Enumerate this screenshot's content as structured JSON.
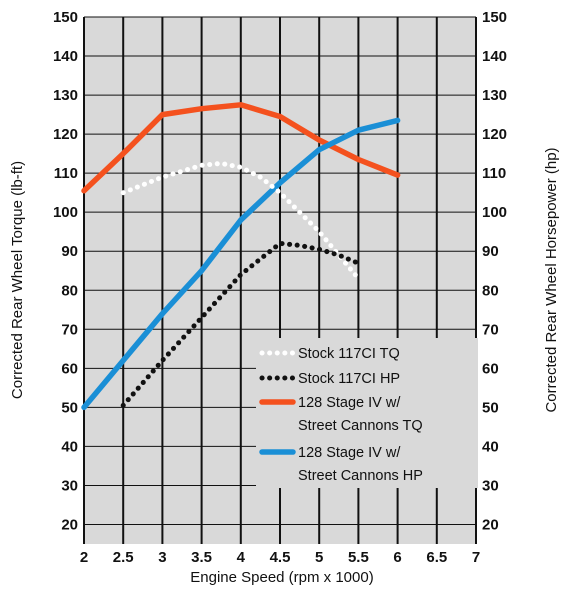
{
  "chart_data": {
    "type": "line",
    "xlabel": "Engine Speed (rpm x 1000)",
    "ylabel_left": "Corrected Rear Wheel Torque (lb-ft)",
    "ylabel_right": "Corrected Rear Wheel Horsepower (hp)",
    "xlim": [
      2,
      7
    ],
    "ylim": [
      15,
      150
    ],
    "x_ticks": [
      "2",
      "2.5",
      "3",
      "3.5",
      "4",
      "4.5",
      "5",
      "5.5",
      "6",
      "6.5",
      "7"
    ],
    "y_ticks": [
      "20",
      "30",
      "40",
      "50",
      "60",
      "70",
      "80",
      "90",
      "100",
      "110",
      "120",
      "130",
      "140",
      "150"
    ],
    "grid": true,
    "legend_position": "bottom-right",
    "series": [
      {
        "name": "Stock 117CI TQ",
        "color": "#ffffff",
        "style": "dotted",
        "x": [
          2.5,
          3.0,
          3.5,
          3.75,
          4.0,
          4.25,
          4.5,
          5.0,
          5.5
        ],
        "y": [
          105,
          109,
          112,
          112.5,
          111.5,
          109,
          105,
          95,
          83
        ]
      },
      {
        "name": "Stock 117CI HP",
        "color": "#111111",
        "style": "dotted",
        "x": [
          2.5,
          3.0,
          3.5,
          4.0,
          4.5,
          4.75,
          5.0,
          5.25,
          5.55
        ],
        "y": [
          50.5,
          62,
          73,
          84,
          92,
          91.5,
          90.5,
          89,
          86.5
        ]
      },
      {
        "name": "128 Stage IV w/ Street Cannons TQ",
        "legend_lines": [
          "128 Stage IV w/",
          "Street Cannons TQ"
        ],
        "color": "#f4511e",
        "style": "solid",
        "x": [
          2.0,
          2.5,
          3.0,
          3.5,
          4.0,
          4.5,
          5.0,
          5.5,
          6.0
        ],
        "y": [
          105.5,
          115,
          125,
          126.5,
          127.5,
          124.5,
          118.5,
          113.5,
          109.5
        ]
      },
      {
        "name": "128 Stage IV w/ Street Cannons HP",
        "legend_lines": [
          "128 Stage IV w/",
          "Street Cannons HP"
        ],
        "color": "#1a8fd6",
        "style": "solid",
        "x": [
          2.0,
          2.5,
          3.0,
          3.5,
          4.0,
          4.5,
          5.0,
          5.5,
          6.0
        ],
        "y": [
          50,
          62,
          74,
          85,
          98,
          107.5,
          116,
          121,
          123.5
        ]
      }
    ]
  }
}
